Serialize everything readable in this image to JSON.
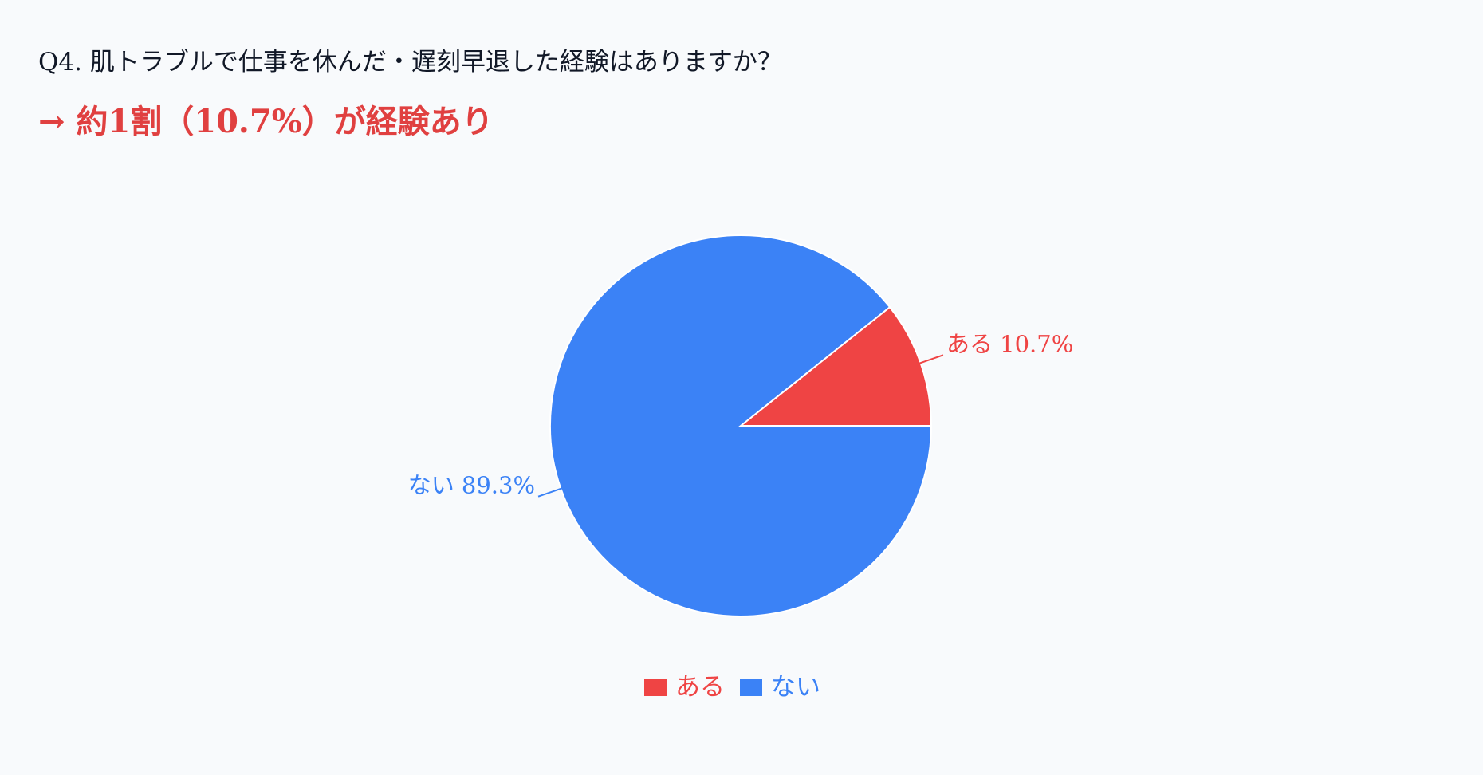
{
  "header": {
    "question": "Q4. 肌トラブルで仕事を休んだ・遅刻早退した経験はありますか？",
    "headline": "→ 約1割（10.7%）が経験あり"
  },
  "chart_data": {
    "type": "pie",
    "title": "",
    "categories": [
      "ある",
      "ない"
    ],
    "values": [
      10.7,
      89.3
    ],
    "labels": [
      "ある 10.7%",
      "ない 89.3%"
    ],
    "colors": [
      "#ef4444",
      "#3b82f6"
    ],
    "start": "3 o'clock, counter-clockwise",
    "legend": "bottom-center"
  }
}
